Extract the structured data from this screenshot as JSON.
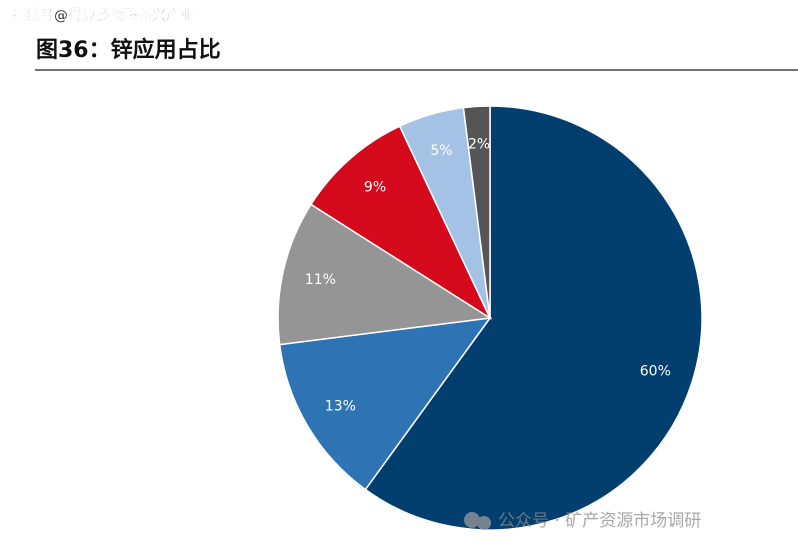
{
  "source_watermark": "搜狐号@得算多战略新兴产业",
  "footer_watermark": "公众号 · 矿产资源市场调研",
  "chart_data": {
    "type": "pie",
    "title": "图36：锌应用占比",
    "values": [
      60,
      13,
      11,
      9,
      5,
      2
    ],
    "value_labels": [
      "60%",
      "13%",
      "11%",
      "9%",
      "5%",
      "2%"
    ],
    "colors": [
      "#033f6e",
      "#2e74b5",
      "#959595",
      "#d40a1c",
      "#a4c2e6",
      "#555555"
    ]
  }
}
